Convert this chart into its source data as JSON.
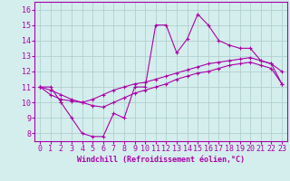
{
  "xlabel": "Windchill (Refroidissement éolien,°C)",
  "bg_color": "#d4eeed",
  "grid_color": "#afd0ce",
  "line_color": "#aa00aa",
  "xlim": [
    -0.5,
    23.5
  ],
  "ylim": [
    7.5,
    16.5
  ],
  "xticks": [
    0,
    1,
    2,
    3,
    4,
    5,
    6,
    7,
    8,
    9,
    10,
    11,
    12,
    13,
    14,
    15,
    16,
    17,
    18,
    19,
    20,
    21,
    22,
    23
  ],
  "yticks": [
    8,
    9,
    10,
    11,
    12,
    13,
    14,
    15,
    16
  ],
  "line1_x": [
    0,
    1,
    2,
    3,
    4,
    5,
    6,
    7,
    8,
    9,
    10,
    11,
    12,
    13,
    14,
    15,
    16,
    17,
    18,
    19,
    20,
    21,
    22,
    23
  ],
  "line1_y": [
    11.0,
    11.0,
    10.0,
    9.0,
    8.0,
    7.8,
    7.8,
    9.3,
    9.0,
    11.0,
    11.0,
    15.0,
    15.0,
    13.2,
    14.1,
    15.7,
    15.0,
    14.0,
    13.7,
    13.5,
    13.5,
    12.7,
    12.5,
    12.0
  ],
  "line2_x": [
    0,
    1,
    2,
    3,
    4,
    5,
    6,
    7,
    8,
    9,
    10,
    11,
    12,
    13,
    14,
    15,
    16,
    17,
    18,
    19,
    20,
    21,
    22,
    23
  ],
  "line2_y": [
    11.0,
    10.5,
    10.2,
    10.1,
    10.0,
    10.2,
    10.5,
    10.8,
    11.0,
    11.2,
    11.3,
    11.5,
    11.7,
    11.9,
    12.1,
    12.3,
    12.5,
    12.6,
    12.7,
    12.8,
    12.9,
    12.7,
    12.5,
    11.2
  ],
  "line3_x": [
    0,
    1,
    2,
    3,
    4,
    5,
    6,
    7,
    8,
    9,
    10,
    11,
    12,
    13,
    14,
    15,
    16,
    17,
    18,
    19,
    20,
    21,
    22,
    23
  ],
  "line3_y": [
    11.0,
    10.8,
    10.5,
    10.2,
    10.0,
    9.8,
    9.7,
    10.0,
    10.3,
    10.6,
    10.8,
    11.0,
    11.2,
    11.5,
    11.7,
    11.9,
    12.0,
    12.2,
    12.4,
    12.5,
    12.6,
    12.4,
    12.2,
    11.2
  ],
  "xlabel_fontsize": 6,
  "tick_fontsize": 6
}
